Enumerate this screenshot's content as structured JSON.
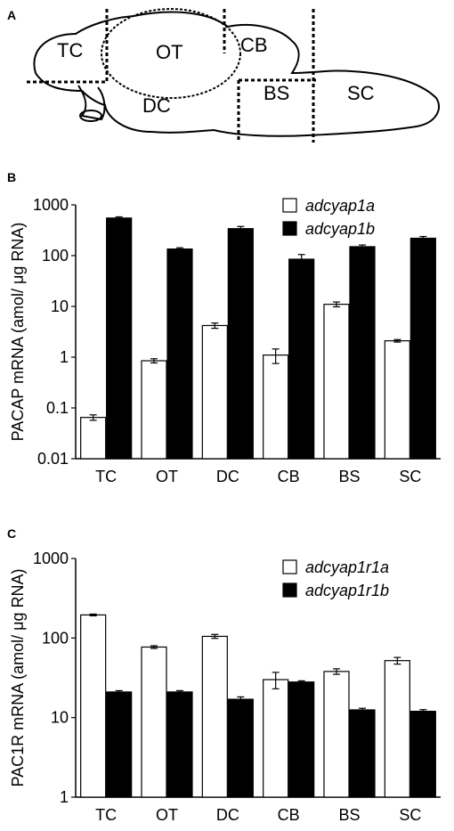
{
  "panel_a": {
    "letter": "A",
    "regions": {
      "tc": "TC",
      "ot": "OT",
      "cb": "CB",
      "dc": "DC",
      "bs": "BS",
      "sc": "SC"
    }
  },
  "panel_b": {
    "letter": "B"
  },
  "panel_c": {
    "letter": "C"
  },
  "colors": {
    "white_bar": "#ffffff",
    "black_bar": "#000000",
    "outline": "#000000"
  },
  "chart_data": [
    {
      "type": "bar",
      "panel": "B",
      "ylabel": "PACAP mRNA (amol/ μg RNA)",
      "yscale": "log",
      "ylim": [
        0.01,
        1000
      ],
      "yticks": [
        "0.01",
        "0.1",
        "1",
        "10",
        "100",
        "1000"
      ],
      "categories": [
        "TC",
        "OT",
        "DC",
        "CB",
        "BS",
        "SC"
      ],
      "series": [
        {
          "name": "adcyap1a",
          "color": "#ffffff",
          "values": [
            0.065,
            0.85,
            4.2,
            1.1,
            11,
            2.1
          ],
          "err": [
            0.008,
            0.08,
            0.5,
            0.35,
            1.2,
            0.12
          ]
        },
        {
          "name": "adcyap1b",
          "color": "#000000",
          "values": [
            550,
            135,
            340,
            85,
            150,
            220
          ],
          "err": [
            30,
            8,
            35,
            20,
            12,
            18
          ]
        }
      ]
    },
    {
      "type": "bar",
      "panel": "C",
      "ylabel": "PAC1R mRNA (amol/ μg RNA)",
      "yscale": "log",
      "ylim": [
        1,
        1000
      ],
      "yticks": [
        "1",
        "10",
        "100",
        "1000"
      ],
      "categories": [
        "TC",
        "OT",
        "DC",
        "CB",
        "BS",
        "SC"
      ],
      "series": [
        {
          "name": "adcyap1r1a",
          "color": "#ffffff",
          "values": [
            195,
            77,
            105,
            30,
            38,
            52
          ],
          "err": [
            5,
            3,
            6,
            7,
            3,
            5
          ]
        },
        {
          "name": "adcyap1r1b",
          "color": "#000000",
          "values": [
            21,
            21,
            17,
            28,
            12.5,
            12
          ],
          "err": [
            0.8,
            0.8,
            1.2,
            1,
            0.6,
            0.6
          ]
        }
      ]
    }
  ]
}
